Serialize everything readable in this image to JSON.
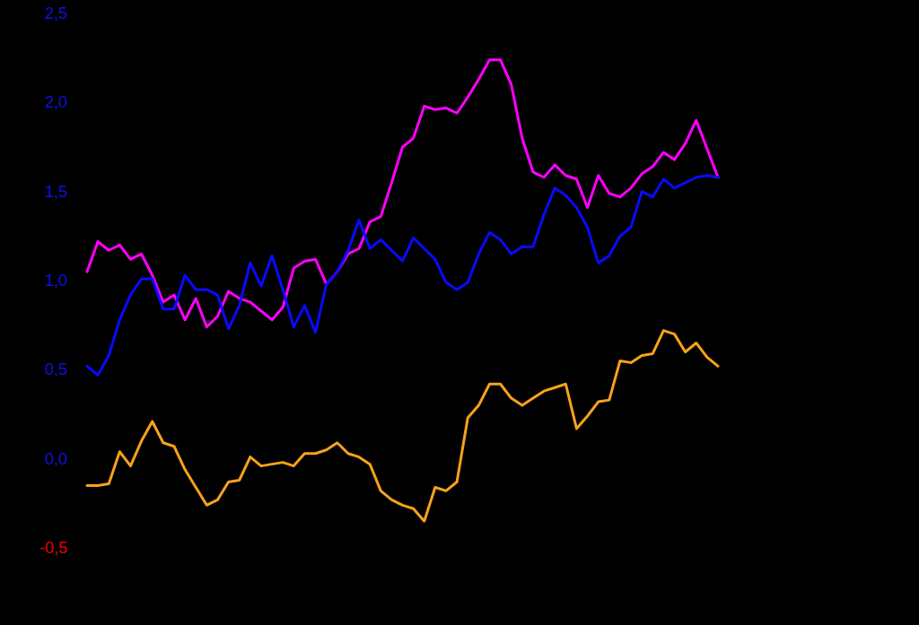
{
  "chart_data": {
    "type": "line",
    "categories": [
      null,
      null,
      null,
      null,
      null,
      null,
      null,
      null,
      null,
      null,
      null,
      null,
      null,
      null,
      null,
      null,
      null,
      null,
      null,
      null,
      null,
      null,
      null,
      null,
      null,
      null,
      null,
      null,
      null,
      null,
      null,
      null,
      null,
      null,
      null,
      null,
      null,
      null,
      null,
      null,
      null,
      null,
      null,
      null,
      null,
      null,
      null,
      null,
      null,
      null,
      null,
      null,
      null,
      null,
      null,
      null,
      null,
      null,
      null
    ],
    "ylim": [
      -0.5,
      2.5
    ],
    "yticks": [
      {
        "value": -0.5,
        "label": "-0,5"
      },
      {
        "value": 0,
        "label": "0,0"
      },
      {
        "value": 0.5,
        "label": "0,5"
      },
      {
        "value": 1,
        "label": "1,0"
      },
      {
        "value": 1.5,
        "label": "1,5"
      },
      {
        "value": 2,
        "label": "2,0"
      },
      {
        "value": 2.5,
        "label": "2,5"
      }
    ],
    "grid": false,
    "tick_labels": "y",
    "series": [
      {
        "color": "#ff00ff",
        "values": [
          1.05,
          1.22,
          1.17,
          1.2,
          1.12,
          1.15,
          1.03,
          0.88,
          0.92,
          0.78,
          0.9,
          0.74,
          0.8,
          0.94,
          0.9,
          0.88,
          0.83,
          0.78,
          0.85,
          1.07,
          1.11,
          1.12,
          0.98,
          1.05,
          1.15,
          1.18,
          1.33,
          1.36,
          1.55,
          1.75,
          1.8,
          1.98,
          1.96,
          1.97,
          1.94,
          2.03,
          2.13,
          2.24,
          2.24,
          2.1,
          1.8,
          1.61,
          1.58,
          1.65,
          1.59,
          1.57,
          1.41,
          1.59,
          1.49,
          1.47,
          1.52,
          1.6,
          1.64,
          1.72,
          1.68,
          1.77,
          1.9,
          1.74,
          1.58
        ]
      },
      {
        "color": "#0a0aff",
        "values": [
          0.52,
          0.47,
          0.58,
          0.78,
          0.92,
          1.01,
          1.01,
          0.84,
          0.84,
          1.03,
          0.95,
          0.95,
          0.92,
          0.73,
          0.86,
          1.1,
          0.97,
          1.14,
          0.95,
          0.74,
          0.86,
          0.71,
          0.98,
          1.05,
          1.17,
          1.34,
          1.18,
          1.23,
          1.17,
          1.11,
          1.24,
          1.18,
          1.12,
          0.99,
          0.95,
          0.99,
          1.15,
          1.27,
          1.23,
          1.15,
          1.19,
          1.19,
          1.37,
          1.52,
          1.48,
          1.41,
          1.3,
          1.1,
          1.14,
          1.25,
          1.3,
          1.5,
          1.47,
          1.57,
          1.52,
          1.55,
          1.58,
          1.59,
          1.58
        ]
      },
      {
        "color": "#f7a21b",
        "values": [
          -0.15,
          -0.15,
          -0.14,
          0.04,
          -0.04,
          0.1,
          0.21,
          0.09,
          0.07,
          -0.06,
          -0.16,
          -0.26,
          -0.23,
          -0.13,
          -0.12,
          0.01,
          -0.04,
          -0.03,
          -0.02,
          -0.04,
          0.03,
          0.03,
          0.05,
          0.09,
          0.03,
          0.01,
          -0.03,
          -0.18,
          -0.23,
          -0.26,
          -0.28,
          -0.35,
          -0.16,
          -0.18,
          -0.13,
          0.23,
          0.3,
          0.42,
          0.42,
          0.34,
          0.3,
          0.34,
          0.38,
          0.4,
          0.42,
          0.17,
          0.24,
          0.32,
          0.33,
          0.55,
          0.54,
          0.58,
          0.59,
          0.72,
          0.7,
          0.6,
          0.65,
          0.57,
          0.52
        ]
      }
    ]
  }
}
